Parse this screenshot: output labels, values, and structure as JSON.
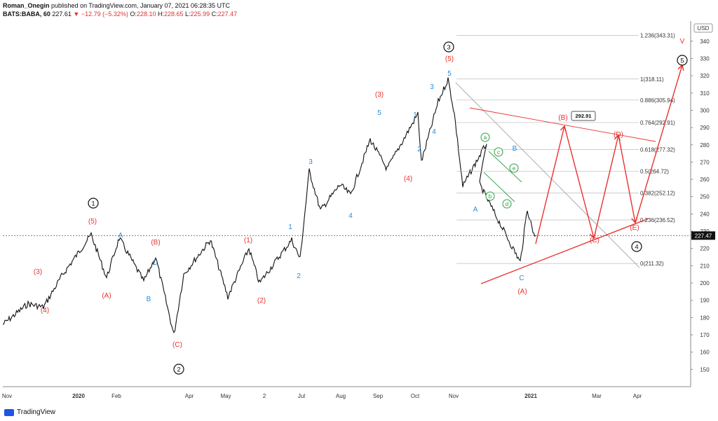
{
  "header": {
    "author": "Roman_Onegin",
    "published": "published on TradingView.com, January 07, 2021 06:28:35 UTC",
    "symbol": "BATS:BABA, 60",
    "last": "227.61",
    "change": "−12.79 (−5.32%)",
    "o_label": "O:",
    "o_value": "228.10",
    "h_label": "H:",
    "h_value": "228.65",
    "l_label": "L:",
    "l_value": "225.99",
    "c_label": "C:",
    "c_value": "227.47"
  },
  "footer": {
    "brand": "TradingView"
  },
  "chart_data": {
    "type": "line",
    "title": "BATS:BABA, 60",
    "currency": "USD",
    "last_price": 227.47,
    "x_tick_labels": [
      "Nov",
      "2020",
      "Feb",
      "Apr",
      "May",
      "2",
      "Jul",
      "Aug",
      "Sep",
      "Oct",
      "Nov",
      "2021",
      "Mar",
      "Apr"
    ],
    "y_ticks": [
      150,
      160,
      170,
      180,
      190,
      200,
      210,
      220,
      230,
      240,
      250,
      260,
      270,
      280,
      290,
      300,
      310,
      320,
      330,
      340
    ],
    "ylim": [
      140,
      346
    ],
    "price_series": {
      "name": "BABA close (approx.)",
      "x": [
        "Nov 2019",
        "Dec 2019",
        "Dec 2019",
        "Jan 2020",
        "Jan 2020",
        "Jan 2020",
        "Feb 2020",
        "Feb 2020",
        "Mar 2020",
        "Mar 2020",
        "Apr 2020",
        "Apr 2020",
        "May 2020",
        "May 2020",
        "Jun 2020",
        "Jun 2020",
        "Jun 2020",
        "Jul 2020",
        "Jul 2020",
        "Aug 2020",
        "Aug 2020",
        "Aug 2020",
        "Sep 2020",
        "Sep 2020",
        "Oct 2020",
        "Oct 2020",
        "Oct 2020",
        "Nov 2020",
        "Nov 2020",
        "Nov 2020",
        "Nov 2020",
        "Dec 2020",
        "Dec 2020",
        "Dec 2020",
        "Jan 2021"
      ],
      "values": [
        176,
        188,
        186,
        204,
        228,
        203,
        226,
        201,
        215,
        170,
        205,
        225,
        192,
        220,
        200,
        225,
        214,
        265,
        242,
        257,
        251,
        283,
        266,
        298,
        270,
        305,
        318,
        298,
        256,
        281,
        257,
        212,
        243,
        230,
        227.47
      ]
    },
    "fibonacci": [
      {
        "label": "1.236(343.31)",
        "level": 343.31
      },
      {
        "label": "1(318.11)",
        "level": 318.11
      },
      {
        "label": "0.886(305.94)",
        "level": 305.94
      },
      {
        "label": "0.764(292.91)",
        "level": 292.91
      },
      {
        "label": "0.618(277.32)",
        "level": 277.32
      },
      {
        "label": "0.5(264.72)",
        "level": 264.72
      },
      {
        "label": "0.382(252.12)",
        "level": 252.12
      },
      {
        "label": "0.236(236.52)",
        "level": 236.52
      },
      {
        "label": "0(211.32)",
        "level": 211.32
      }
    ],
    "price_badge": "292.91",
    "last_price_label": "227.47",
    "wave_labels": {
      "circled_black": [
        "1",
        "2",
        "3",
        "4",
        "5"
      ],
      "red": [
        "(3)",
        "(4)",
        "(5)",
        "(A)",
        "(B)",
        "(C)",
        "(1)",
        "(2)",
        "(3)",
        "(4)",
        "(5)",
        "(A)",
        "(B)",
        "(C)",
        "(D)",
        "(E)",
        "V"
      ],
      "blue": [
        "A",
        "B",
        "C",
        "1",
        "2",
        "3",
        "4",
        "5",
        "1",
        "2",
        "3",
        "4",
        "5",
        "A",
        "B",
        "C"
      ],
      "green_circled": [
        "a",
        "b",
        "c",
        "d",
        "e"
      ]
    }
  }
}
